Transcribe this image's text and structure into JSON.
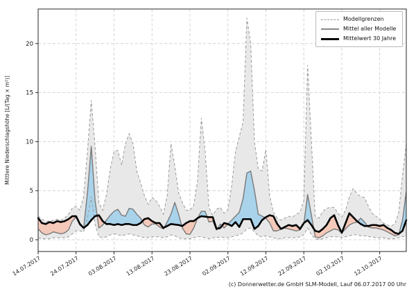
{
  "chart_data": {
    "type": "area",
    "title": "",
    "xlabel": "",
    "ylabel": "Mittlere Niederschlagshöhe [L/(Tag × m²)]",
    "x_start_date": "14.07.2017",
    "x_step_days": 1,
    "x_tick_day_index": [
      0,
      10,
      20,
      30,
      40,
      50,
      60,
      70,
      80,
      90
    ],
    "x_tick_labels": [
      "14.07.2017",
      "24.07.2017",
      "03.08.2017",
      "13.08.2017",
      "23.08.2017",
      "02.09.2017",
      "12.09.2017",
      "22.09.2017",
      "02.10.2017",
      "12.10.2017"
    ],
    "y_ticks": [
      0,
      5,
      10,
      15,
      20
    ],
    "ylim": [
      -1.2,
      23.5
    ],
    "grid": true,
    "legend_position": "top-right",
    "series": [
      {
        "name": "Modellgrenze Maximum",
        "role": "band_max",
        "values": [
          2.4,
          2.1,
          1.9,
          1.9,
          2.0,
          2.1,
          2.0,
          2.2,
          2.6,
          3.2,
          3.4,
          3.0,
          4.4,
          9.0,
          14.2,
          9.5,
          3.8,
          3.0,
          4.6,
          7.2,
          9.0,
          9.1,
          7.6,
          9.8,
          10.8,
          9.8,
          7.0,
          5.8,
          4.5,
          3.6,
          4.3,
          4.0,
          3.4,
          2.6,
          4.5,
          9.8,
          7.5,
          4.8,
          3.8,
          3.0,
          3.0,
          3.5,
          6.0,
          12.4,
          9.0,
          3.3,
          2.5,
          3.1,
          3.3,
          2.7,
          3.0,
          5.5,
          9.0,
          10.5,
          12.0,
          22.6,
          20.0,
          10.0,
          7.2,
          7.0,
          9.2,
          4.5,
          2.8,
          2.2,
          2.0,
          2.2,
          2.4,
          2.3,
          2.6,
          2.8,
          4.0,
          17.8,
          10.0,
          2.4,
          2.2,
          2.9,
          3.2,
          3.3,
          3.3,
          2.7,
          2.3,
          3.0,
          4.4,
          5.2,
          4.7,
          4.4,
          4.3,
          3.4,
          2.7,
          2.4,
          2.1,
          1.7,
          1.5,
          1.4,
          1.6,
          2.8,
          6.5,
          9.8
        ]
      },
      {
        "name": "Modellgrenze Minimum",
        "role": "band_min",
        "values": [
          0.2,
          0.1,
          0.1,
          0.1,
          0.2,
          0.2,
          0.2,
          0.2,
          0.3,
          0.6,
          0.9,
          0.9,
          0.8,
          2.2,
          4.4,
          1.6,
          0.3,
          0.2,
          0.3,
          0.5,
          0.6,
          0.5,
          0.4,
          0.5,
          0.6,
          0.5,
          0.4,
          0.3,
          0.2,
          0.2,
          0.3,
          0.3,
          0.3,
          0.2,
          0.3,
          0.5,
          0.4,
          0.2,
          0.1,
          0.1,
          0.1,
          0.2,
          0.3,
          0.3,
          0.2,
          0.1,
          0.2,
          0.2,
          0.3,
          0.2,
          0.2,
          0.3,
          0.4,
          0.5,
          0.7,
          1.1,
          1.2,
          0.8,
          0.4,
          0.3,
          0.4,
          0.3,
          0.2,
          0.1,
          0.1,
          0.2,
          0.2,
          0.2,
          0.2,
          0.3,
          0.5,
          1.2,
          0.5,
          0.1,
          0.0,
          0.1,
          0.2,
          0.3,
          0.3,
          0.3,
          0.2,
          0.3,
          0.4,
          0.5,
          0.5,
          0.4,
          0.4,
          0.3,
          0.3,
          0.2,
          0.2,
          0.2,
          0.1,
          0.1,
          0.1,
          0.2,
          0.3,
          0.4
        ]
      },
      {
        "name": "Mittel aller Modelle",
        "role": "model_mean",
        "values": [
          1.1,
          0.7,
          0.5,
          0.6,
          0.8,
          0.7,
          0.6,
          0.7,
          1.0,
          1.9,
          2.3,
          1.5,
          1.2,
          4.8,
          9.5,
          4.0,
          1.2,
          1.5,
          2.0,
          2.5,
          2.9,
          3.1,
          2.5,
          2.4,
          3.2,
          3.1,
          2.6,
          2.2,
          1.5,
          1.3,
          1.6,
          1.6,
          1.3,
          1.1,
          1.8,
          2.6,
          3.8,
          2.6,
          1.2,
          0.6,
          0.55,
          1.2,
          2.2,
          2.9,
          2.9,
          1.8,
          1.9,
          1.0,
          1.6,
          1.2,
          1.6,
          2.0,
          2.4,
          2.8,
          4.2,
          6.8,
          7.0,
          5.0,
          2.6,
          2.4,
          2.2,
          1.7,
          0.9,
          0.9,
          1.1,
          1.2,
          1.1,
          1.0,
          0.9,
          1.0,
          1.6,
          4.6,
          2.5,
          0.3,
          0.2,
          0.4,
          0.7,
          0.9,
          1.1,
          1.0,
          0.7,
          1.1,
          1.5,
          1.7,
          1.8,
          2.2,
          1.8,
          1.3,
          1.2,
          1.2,
          1.1,
          1.0,
          0.8,
          0.6,
          0.4,
          0.5,
          2.0,
          4.9
        ]
      },
      {
        "name": "Mittelwert 30 Jahre",
        "role": "climate_mean",
        "values": [
          2.2,
          1.7,
          1.6,
          1.8,
          1.7,
          1.9,
          1.8,
          1.9,
          2.1,
          2.4,
          2.4,
          1.6,
          1.2,
          1.5,
          2.0,
          2.4,
          2.5,
          1.9,
          1.6,
          1.6,
          1.5,
          1.6,
          1.5,
          1.6,
          1.6,
          1.5,
          1.5,
          1.7,
          2.1,
          2.2,
          1.9,
          1.7,
          1.7,
          1.2,
          1.4,
          1.6,
          1.55,
          1.5,
          1.4,
          1.7,
          1.9,
          1.9,
          2.2,
          2.4,
          2.35,
          2.3,
          2.3,
          1.1,
          1.2,
          1.7,
          1.6,
          1.4,
          1.8,
          1.3,
          2.1,
          2.1,
          2.1,
          1.1,
          1.4,
          2.0,
          2.3,
          2.5,
          2.4,
          1.6,
          1.1,
          1.3,
          1.5,
          1.4,
          1.5,
          1.1,
          1.7,
          2.0,
          1.5,
          0.9,
          0.8,
          1.1,
          1.5,
          2.2,
          2.5,
          1.5,
          0.7,
          1.7,
          2.7,
          2.3,
          1.9,
          1.6,
          1.4,
          1.4,
          1.5,
          1.5,
          1.4,
          1.5,
          1.2,
          1.0,
          0.7,
          0.6,
          0.9,
          2.0
        ]
      }
    ],
    "source_note": "(c) Donnerwetter.de GmbH SLM-Modell, Lauf 06.07.2017 00 Uhr"
  },
  "legend": {
    "items": [
      {
        "label": "Modellgrenzen",
        "style": "dashed-gray"
      },
      {
        "label": "Mittel aller Modelle",
        "style": "solid-gray"
      },
      {
        "label": "Mittelwert 30 Jahre",
        "style": "solid-black-thick"
      }
    ]
  },
  "colors": {
    "band_fill": "#e8e8e8",
    "band_edge": "#999999",
    "above_fill": "#a9d3ea",
    "below_fill": "#f4c9ba",
    "model_mean_line": "#787878",
    "climate_mean_line": "#000000",
    "grid": "#c9c9c9",
    "spine": "#262626",
    "tick_text": "#1a1a1a"
  }
}
